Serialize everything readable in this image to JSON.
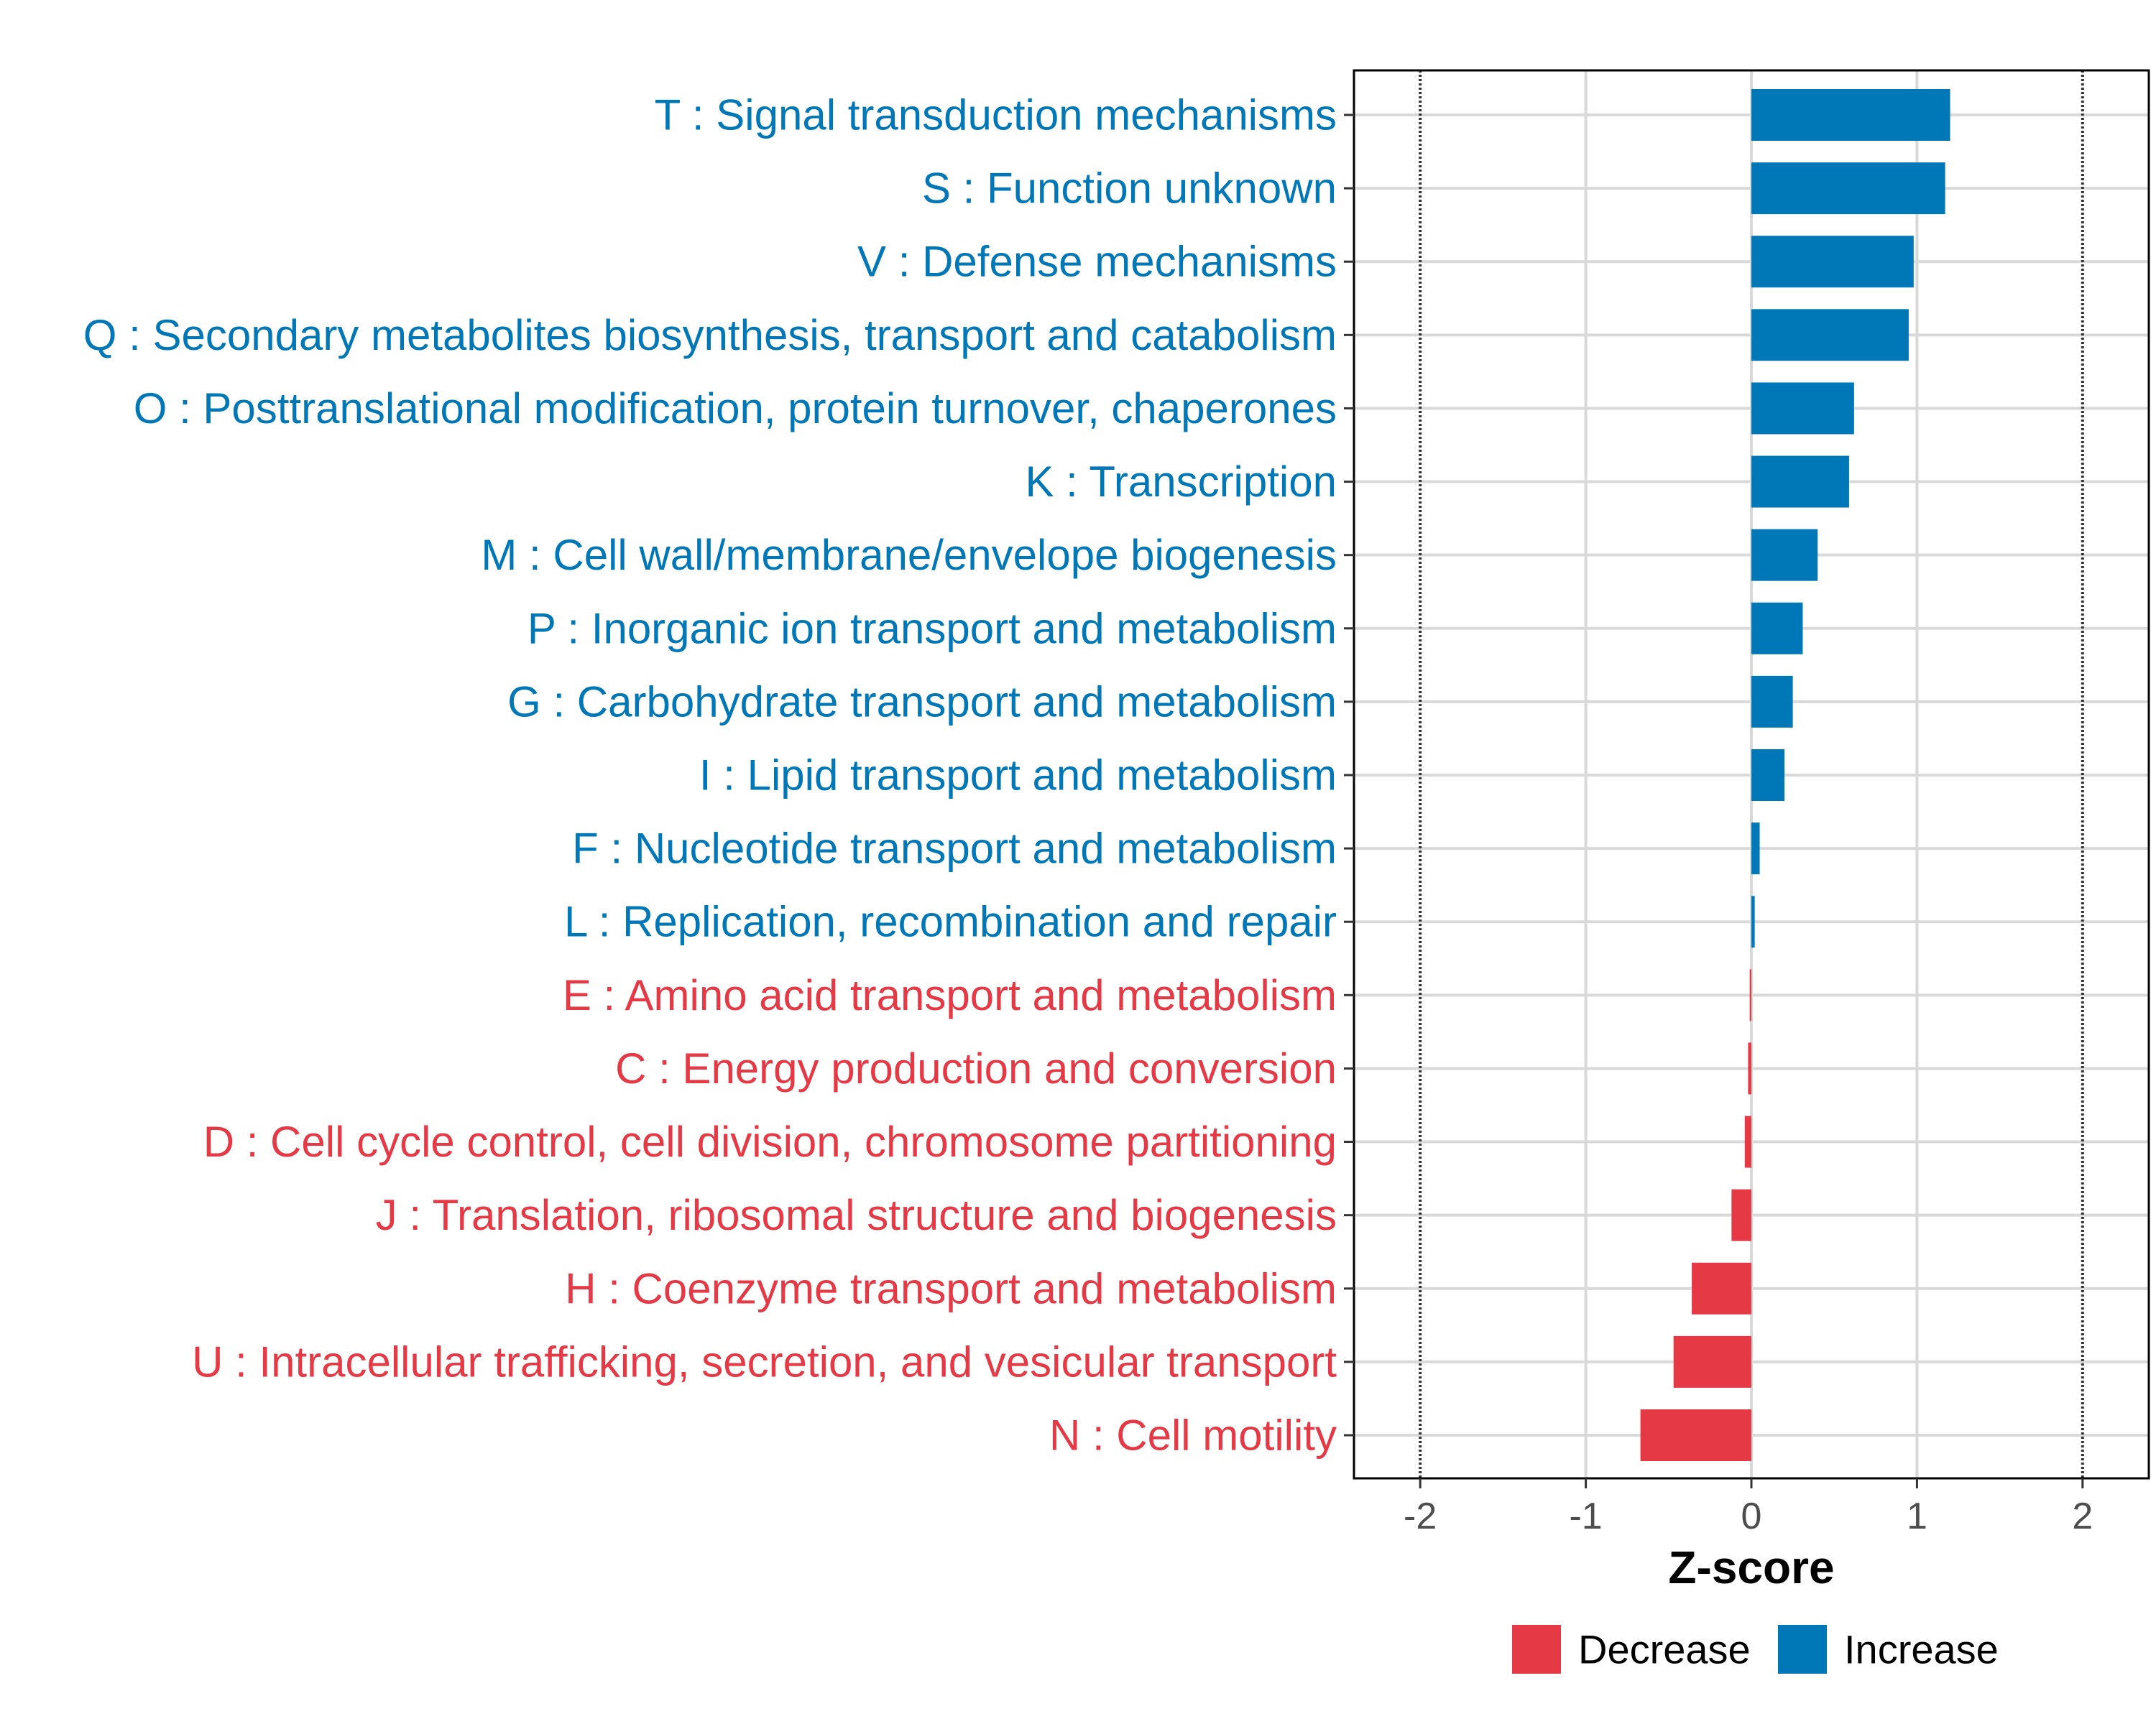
{
  "chart_data": {
    "type": "bar",
    "orientation": "horizontal",
    "xlabel": "Z-score",
    "xlim": [
      -2.4,
      2.4
    ],
    "xticks": [
      -2,
      -1,
      0,
      1,
      2
    ],
    "xtick_labels": [
      "-2",
      "-1",
      "0",
      "1",
      "2"
    ],
    "reference_lines": [
      -2,
      2
    ],
    "grid": true,
    "legend_position": "bottom",
    "colors": {
      "Decrease": "#E63946",
      "Increase": "#0077B6"
    },
    "legend": [
      {
        "name": "Decrease",
        "color": "#E63946"
      },
      {
        "name": "Increase",
        "color": "#0077B6"
      }
    ],
    "categories": [
      "T : Signal transduction mechanisms",
      "S : Function unknown",
      "V : Defense mechanisms",
      "Q : Secondary metabolites biosynthesis, transport and catabolism",
      "O : Posttranslational modification, protein turnover, chaperones",
      "K : Transcription",
      "M : Cell wall/membrane/envelope biogenesis",
      "P : Inorganic ion transport and metabolism",
      "G : Carbohydrate transport and metabolism",
      "I : Lipid transport and metabolism",
      "F : Nucleotide transport and metabolism",
      "L : Replication, recombination and repair",
      "E : Amino acid transport and metabolism",
      "C : Energy production and conversion",
      "D : Cell cycle control, cell division, chromosome partitioning",
      "J : Translation, ribosomal structure and biogenesis",
      "H : Coenzyme transport and metabolism",
      "U : Intracellular trafficking, secretion, and vesicular transport",
      "N : Cell motility"
    ],
    "values": [
      1.2,
      1.17,
      0.98,
      0.95,
      0.62,
      0.59,
      0.4,
      0.31,
      0.25,
      0.2,
      0.05,
      0.02,
      -0.01,
      -0.02,
      -0.04,
      -0.12,
      -0.36,
      -0.47,
      -0.67
    ],
    "groups": [
      "Increase",
      "Increase",
      "Increase",
      "Increase",
      "Increase",
      "Increase",
      "Increase",
      "Increase",
      "Increase",
      "Increase",
      "Increase",
      "Increase",
      "Decrease",
      "Decrease",
      "Decrease",
      "Decrease",
      "Decrease",
      "Decrease",
      "Decrease"
    ]
  }
}
